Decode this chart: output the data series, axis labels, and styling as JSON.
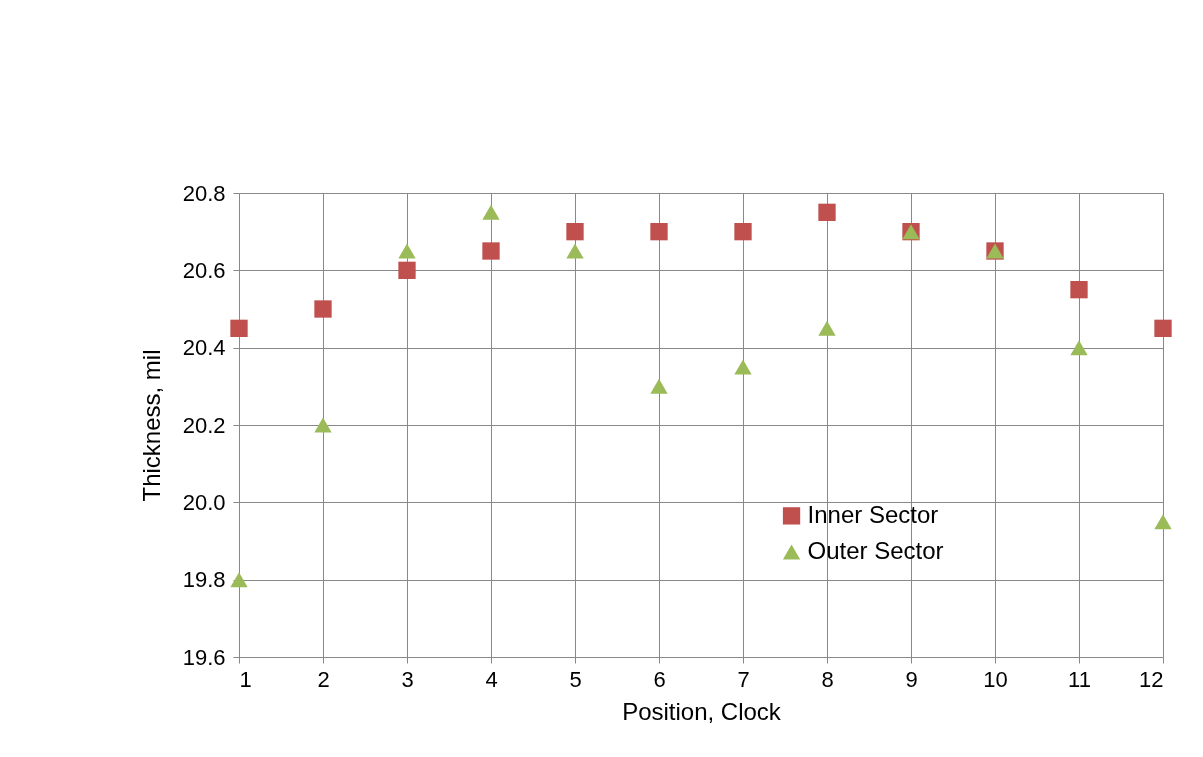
{
  "chart_data": {
    "type": "scatter",
    "xlabel": "Position, Clock",
    "ylabel": "Thickness, mil",
    "x": [
      1,
      2,
      3,
      4,
      5,
      6,
      7,
      8,
      9,
      10,
      11,
      12
    ],
    "series": [
      {
        "name": "Inner Sector",
        "color": "#c0504d",
        "marker": "square",
        "values": [
          20.45,
          20.5,
          20.6,
          20.65,
          20.7,
          20.7,
          20.7,
          20.75,
          20.7,
          20.65,
          20.55,
          20.45
        ]
      },
      {
        "name": "Outer Sector",
        "color": "#9bbb59",
        "marker": "triangle",
        "values": [
          19.8,
          20.2,
          20.65,
          20.75,
          20.65,
          20.3,
          20.35,
          20.45,
          20.7,
          20.65,
          20.4,
          19.95
        ]
      }
    ],
    "xlim": [
      1,
      12
    ],
    "xticks": [
      1,
      2,
      3,
      4,
      5,
      6,
      7,
      8,
      9,
      10,
      11,
      12
    ],
    "ylim": [
      19.6,
      20.8
    ],
    "yticks": [
      19.6,
      19.8,
      {
        "value": 20,
        "label": "20.0"
      },
      20.2,
      20.4,
      20.6,
      20.8
    ],
    "grid": true,
    "legend": "bottom right"
  }
}
